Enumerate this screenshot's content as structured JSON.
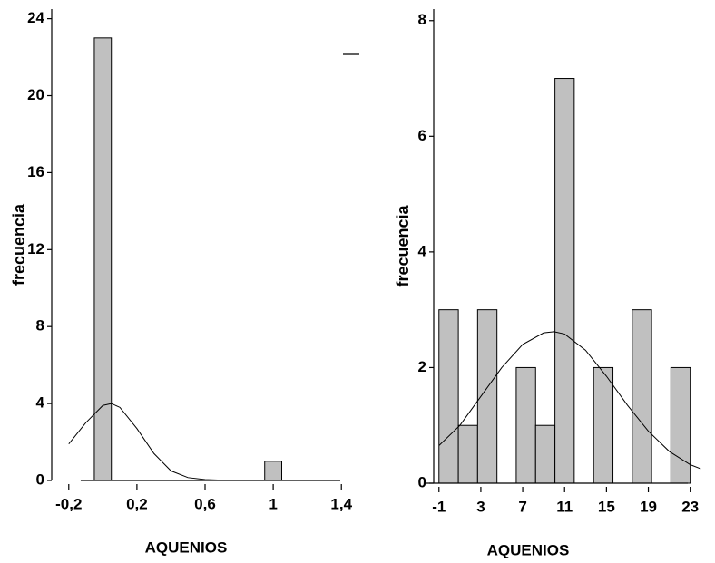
{
  "chart_data": [
    {
      "type": "histogram",
      "xlabel": "AQUENIOS",
      "ylabel": "frecuencia",
      "color": "#c0c0c0",
      "bins": [
        -0.05,
        0.05,
        0.15,
        0.25,
        0.35,
        0.45,
        0.55,
        0.65,
        0.75,
        0.85,
        0.95,
        1.05
      ],
      "counts": [
        23,
        0,
        0,
        0,
        0,
        0,
        0,
        0,
        0,
        0,
        1
      ],
      "curve": {
        "x": [
          -0.2,
          -0.1,
          0,
          0.05,
          0.1,
          0.2,
          0.3,
          0.4,
          0.5,
          0.6,
          0.75
        ],
        "values": [
          1.9,
          3.0,
          3.9,
          4.0,
          3.8,
          2.7,
          1.4,
          0.5,
          0.15,
          0.05,
          0
        ]
      },
      "xlim": [
        -0.3,
        1.5
      ],
      "ylim": [
        0,
        24.5
      ],
      "xticks": [
        {
          "value": -0.2,
          "label": "-0,2"
        },
        {
          "value": 0.2,
          "label": "0,2"
        },
        {
          "value": 0.6,
          "label": "0,6"
        },
        1,
        {
          "value": 1.4,
          "label": "1,4"
        }
      ],
      "yticks": [
        0,
        4,
        8,
        12,
        16,
        20,
        24
      ]
    },
    {
      "type": "histogram",
      "xlabel": "AQUENIOS",
      "ylabel": "frecuencia",
      "color": "#c0c0c0",
      "bins": [
        -1,
        0.85,
        2.69,
        4.54,
        6.38,
        8.23,
        10.08,
        11.92,
        13.77,
        15.62,
        17.46,
        19.31,
        21.15,
        23
      ],
      "counts": [
        3,
        1,
        3,
        0,
        2,
        1,
        7,
        0,
        2,
        0,
        3,
        0,
        2
      ],
      "curve": {
        "x": [
          -1,
          1,
          3,
          5,
          7,
          9,
          10,
          11,
          13,
          15,
          17,
          19,
          21,
          23,
          24
        ],
        "values": [
          0.65,
          1.0,
          1.5,
          2.0,
          2.4,
          2.6,
          2.62,
          2.58,
          2.3,
          1.85,
          1.35,
          0.9,
          0.55,
          0.32,
          0.25
        ]
      },
      "xlim": [
        -1.5,
        24.5
      ],
      "ylim": [
        0,
        8.2
      ],
      "xticks": [
        -1,
        3,
        7,
        11,
        15,
        19,
        23
      ],
      "yticks": [
        0,
        2,
        4,
        6,
        8
      ]
    }
  ]
}
